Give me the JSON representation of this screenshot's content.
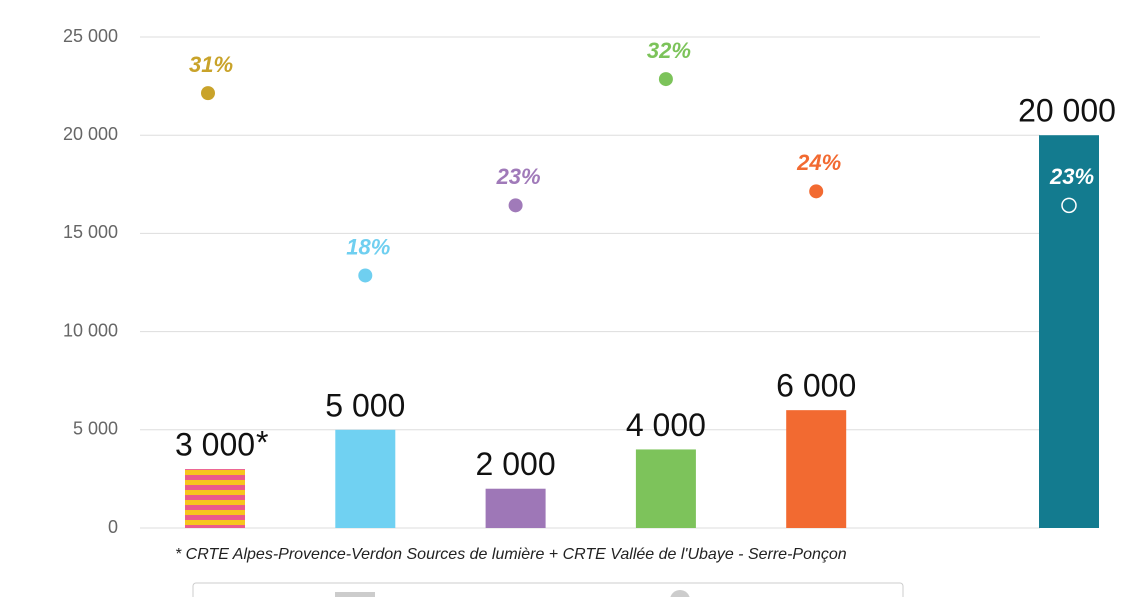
{
  "chart_data": {
    "type": "bar",
    "categories": [
      null,
      null,
      null,
      null,
      null,
      null
    ],
    "series": [
      {
        "values": [
          3000,
          5000,
          2000,
          4000,
          6000,
          20000
        ],
        "value_labels": [
          "3 000",
          "5 000",
          "2 000",
          "4 000",
          "6 000",
          "20 000"
        ],
        "colors": [
          "#f7c51e",
          "#70d1f2",
          "#9e77b7",
          "#7dc35b",
          "#f26a31",
          "#137b8f"
        ],
        "stripe_color": "#ea5a8c"
      },
      {
        "type": "scatter",
        "axis": "y2",
        "values": [
          31,
          18,
          23,
          32,
          24,
          23
        ],
        "value_labels": [
          "31%",
          "18%",
          "23%",
          "32%",
          "24%",
          "23%"
        ],
        "colors": [
          "#c9a32a",
          "#6fcff0",
          "#a07ab9",
          "#7cc35a",
          "#f26a31",
          "#ffffff"
        ]
      }
    ],
    "ylim": [
      0,
      25000
    ],
    "yticks": [
      0,
      {
        "value": 5000,
        "label": "5 000"
      },
      {
        "value": 10000,
        "label": "10 000"
      },
      {
        "value": 15000,
        "label": "15 000"
      },
      {
        "value": 20000,
        "label": "20 000"
      },
      {
        "value": 25000,
        "label": "25 000"
      }
    ],
    "y2lim": [
      0,
      35
    ],
    "grid": true,
    "annotation": "*",
    "note": "*   CRTE Alpes-Provence-Verdon Sources de lumière + CRTE Vallée de l'Ubaye - Serre-Ponçon"
  }
}
